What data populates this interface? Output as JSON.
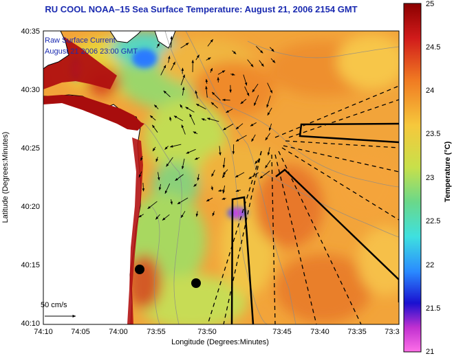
{
  "title": "RU COOL  NOAA–15  Sea Surface Temperature:  August 21, 2006 2154 GMT",
  "legend": {
    "line1": "Raw Surface Current",
    "line2": "August 21  2006 23:00 GMT",
    "scale_label": "50 cm/s"
  },
  "axes": {
    "xlabel": "Longitude (Degrees:Minutes)",
    "ylabel": "Latitude (Degrees:Minutes)",
    "x_ticks": [
      "74:10",
      "74:05",
      "74:00",
      "73:55",
      "73:50",
      "73:45",
      "73:40",
      "73:35",
      "73:3"
    ],
    "y_ticks": [
      "40:35",
      "40:30",
      "40:25",
      "40:20",
      "40:15",
      "40:10"
    ]
  },
  "colorbar": {
    "label": "Temperature (°C)",
    "ticks": [
      "25",
      "24.5",
      "24",
      "23.5",
      "23",
      "22.5",
      "22",
      "21.5",
      "21"
    ],
    "min": 21,
    "max": 25
  },
  "colors": {
    "title": "#1a2ab0",
    "land": "#ffffff",
    "warm": "#b01010",
    "cool": "#1a3aff"
  }
}
